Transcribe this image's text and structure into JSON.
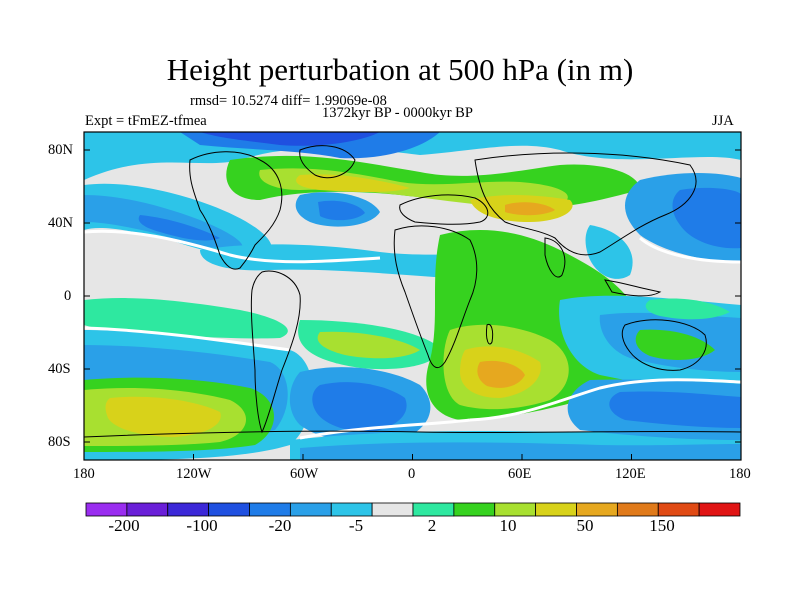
{
  "map": {
    "title": "Height perturbation at 500 hPa (in m)",
    "stats": "rmsd= 10.5274 diff= 1.99069e-08",
    "period": "1372kyr BP - 0000kyr BP",
    "experiment": "Expt = tFmEZ-tfmea",
    "season": "JJA",
    "lat_labels": [
      "80N",
      "40N",
      "0",
      "40S",
      "80S"
    ],
    "lon_labels": [
      "180",
      "120W",
      "60W",
      "0",
      "60E",
      "120E",
      "180"
    ]
  },
  "colorbar": {
    "colors": [
      "#9a2df0",
      "#6a1fd8",
      "#3c28d8",
      "#1f50e0",
      "#1f7ce8",
      "#2aa0e8",
      "#2dc4e8",
      "#e6e6e6",
      "#2ee8a0",
      "#36d21f",
      "#a8e030",
      "#d8d21a",
      "#e6a81f",
      "#e07a1a",
      "#e04a14",
      "#e01414"
    ],
    "labels": [
      "-200",
      "-100",
      "-20",
      "-5",
      "2",
      "10",
      "50",
      "150"
    ]
  }
}
